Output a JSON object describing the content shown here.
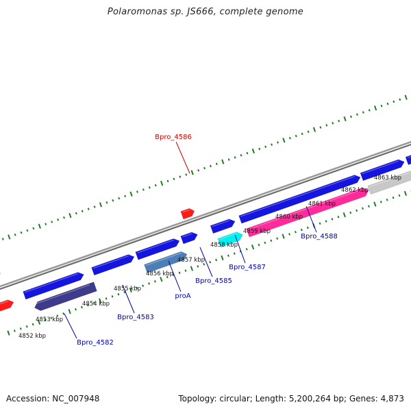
{
  "title": "Polaromonas sp. JS666, complete genome",
  "accession": "Accession: NC_007948",
  "summary": "Topology: circular; Length: 5,200,264 bp; Genes: 4,873",
  "colors": {
    "backbone": "#8a8a8a",
    "tick": "#1f7a1f",
    "forward_gene": "#1515e0",
    "reverse_gene": "#3e3a8c",
    "highlight_gene": "#ff1a1a",
    "pink_gene": "#ff2b9b",
    "cyan_gene": "#00f0f0",
    "steel_gene": "#4c7fb8",
    "grey_gene": "#c8c8c8",
    "red_label": "#cc0000",
    "blue_label": "#0000aa"
  },
  "scale": {
    "labels": [
      "4852 kbp",
      "4853 kbp",
      "4854 kbp",
      "4855 kbp",
      "4856 kbp",
      "4857 kbp",
      "4858 kbp",
      "4859 kbp",
      "4860 kbp",
      "4861 kbp",
      "4862 kbp",
      "4863 kbp"
    ]
  },
  "gene_labels": [
    {
      "name": "Bpro_4586",
      "color": "red"
    },
    {
      "name": "Bpro_4588",
      "color": "blue"
    },
    {
      "name": "Bpro_4587",
      "color": "blue"
    },
    {
      "name": "Bpro_4585",
      "color": "blue"
    },
    {
      "name": "proA",
      "color": "blue"
    },
    {
      "name": "Bpro_4583",
      "color": "blue"
    },
    {
      "name": "Bpro_4582",
      "color": "blue"
    }
  ]
}
